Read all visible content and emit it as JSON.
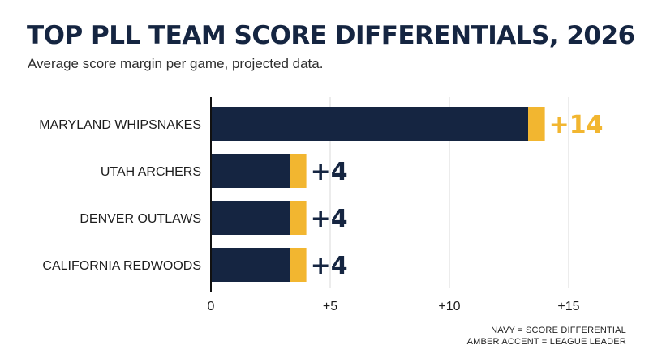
{
  "colors": {
    "navy": "#152541",
    "amber": "#f2b630",
    "grid": "#d9d9d9",
    "axis": "#111111"
  },
  "legend": {
    "line1": "NAVY = SCORE DIFFERENTIAL",
    "line2": "AMBER ACCENT = LEAGUE LEADER"
  },
  "chart_data": {
    "type": "bar",
    "orientation": "horizontal",
    "title": "TOP PLL TEAM SCORE DIFFERENTIALS, 2026",
    "subtitle": "Average score margin per game, projected data.",
    "categories": [
      "MARYLAND WHIPSNAKES",
      "UTAH ARCHERS",
      "DENVER OUTLAWS",
      "CALIFORNIA REDWOODS"
    ],
    "values": [
      14,
      4,
      4,
      4
    ],
    "data_labels": [
      "+14",
      "+4",
      "+4",
      "+4"
    ],
    "leader": [
      true,
      false,
      false,
      false
    ],
    "xlim": [
      0,
      15
    ],
    "xticks": [
      0,
      5,
      10,
      15
    ],
    "xtick_labels": [
      "0",
      "+5",
      "+10",
      "+15"
    ],
    "accent_width": 0.7,
    "grid": true,
    "legend_position": "bottom-right"
  }
}
